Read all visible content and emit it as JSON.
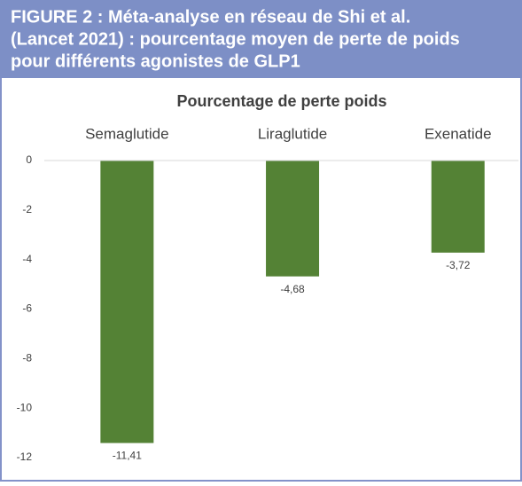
{
  "header": {
    "lines": [
      "FIGURE 2 : Méta-analyse en réseau de Shi et al.",
      "(Lancet 2021) : pourcentage moyen de perte de poids",
      "pour différents agonistes de GLP1"
    ]
  },
  "chart_data": {
    "type": "bar",
    "title": "Pourcentage de perte poids",
    "categories": [
      "Semaglutide",
      "Liraglutide",
      "Exenatide"
    ],
    "values": [
      -11.41,
      -4.68,
      -3.72
    ],
    "value_labels": [
      "-11,41",
      "-4,68",
      "-3,72"
    ],
    "color": "#548235",
    "ylim": [
      -12,
      0
    ],
    "yticks": [
      0,
      -2,
      -4,
      -6,
      -8,
      -10,
      -12
    ],
    "grid": false
  }
}
